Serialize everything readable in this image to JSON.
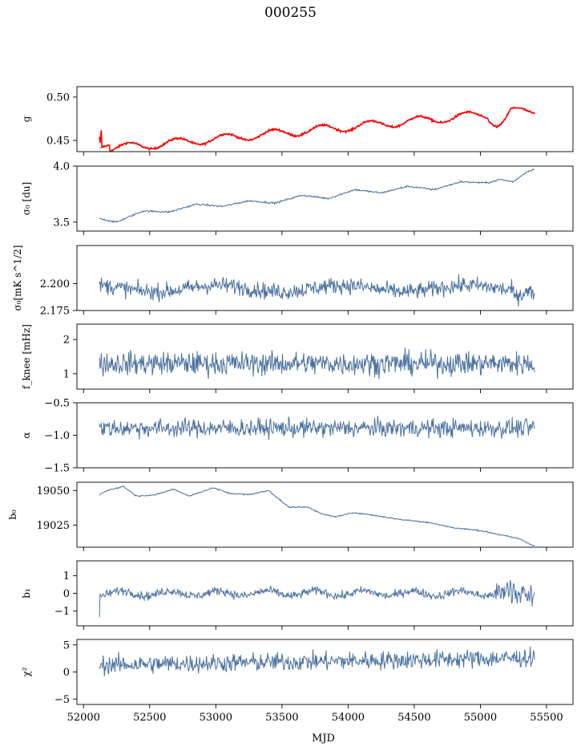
{
  "figure": {
    "title": "000255"
  },
  "chart_data": {
    "type": "line",
    "xlabel": "MJD",
    "xlim": [
      51950,
      55700
    ],
    "xticks": [
      52000,
      52500,
      53000,
      53500,
      54000,
      54500,
      55000,
      55500
    ],
    "panels": [
      {
        "ylabel": "g",
        "ylim": [
          0.437,
          0.512
        ],
        "yticks": [
          0.45,
          0.5
        ],
        "tick_labels": [
          "0.45",
          "0.50"
        ],
        "series": [
          {
            "color": "#4c72a0"
          },
          {
            "color": "#ff0000",
            "overlay": true
          }
        ]
      },
      {
        "ylabel": "σ₀ [du]",
        "ylim": [
          3.42,
          4.0
        ],
        "yticks": [
          3.5,
          4.0
        ],
        "tick_labels": [
          "3.5",
          "4.0"
        ],
        "series": [
          {
            "color": "#4c72a0"
          }
        ]
      },
      {
        "ylabel": "σ₀[mK s^1/2]",
        "ylim": [
          2.175,
          2.2355
        ],
        "yticks": [
          2.175,
          2.2
        ],
        "tick_labels": [
          "2.175",
          "2.200"
        ],
        "series": [
          {
            "color": "#4c72a0"
          }
        ]
      },
      {
        "ylabel": "f_knee [mHz]",
        "ylim": [
          0.55,
          2.45
        ],
        "yticks": [
          1,
          2
        ],
        "tick_labels": [
          "1",
          "2"
        ],
        "series": [
          {
            "color": "#4c72a0"
          }
        ]
      },
      {
        "ylabel": "α",
        "ylim": [
          -1.5,
          -0.5
        ],
        "yticks": [
          -1.5,
          -1.0,
          -0.5
        ],
        "tick_labels": [
          "−1.5",
          "−1.0",
          "−0.5"
        ],
        "series": [
          {
            "color": "#4c72a0"
          }
        ]
      },
      {
        "ylabel": "b₀",
        "ylim": [
          19009,
          19056
        ],
        "yticks": [
          19025,
          19050
        ],
        "tick_labels": [
          "19025",
          "19050"
        ],
        "series": [
          {
            "color": "#4c72a0"
          }
        ]
      },
      {
        "ylabel": "b₁",
        "ylim": [
          -1.85,
          1.85
        ],
        "yticks": [
          -1,
          0,
          1
        ],
        "tick_labels": [
          "−1",
          "0",
          "1"
        ],
        "series": [
          {
            "color": "#4c72a0"
          }
        ]
      },
      {
        "ylabel": "χ²",
        "ylim": [
          -6,
          6
        ],
        "yticks": [
          -5,
          0,
          5
        ],
        "tick_labels": [
          "−5",
          "0",
          "5"
        ],
        "series": [
          {
            "color": "#4c72a0"
          }
        ]
      }
    ],
    "trend_points": {
      "b0": [
        [
          52120,
          19047
        ],
        [
          52180,
          19050
        ],
        [
          52300,
          19053
        ],
        [
          52400,
          19046
        ],
        [
          52550,
          19047
        ],
        [
          52680,
          19051
        ],
        [
          52800,
          19046
        ],
        [
          52980,
          19052
        ],
        [
          53100,
          19048
        ],
        [
          53250,
          19047
        ],
        [
          53400,
          19050
        ],
        [
          53550,
          19038
        ],
        [
          53700,
          19038
        ],
        [
          53800,
          19033
        ],
        [
          53900,
          19031
        ],
        [
          54050,
          19034
        ],
        [
          54200,
          19032
        ],
        [
          54400,
          19029
        ],
        [
          54600,
          19027
        ],
        [
          54800,
          19023
        ],
        [
          55000,
          19021
        ],
        [
          55150,
          19018
        ],
        [
          55300,
          19015
        ],
        [
          55400,
          19010
        ]
      ],
      "sigma0_du": [
        [
          52120,
          3.53
        ],
        [
          52250,
          3.5
        ],
        [
          52450,
          3.6
        ],
        [
          52650,
          3.59
        ],
        [
          52850,
          3.66
        ],
        [
          53050,
          3.64
        ],
        [
          53250,
          3.69
        ],
        [
          53450,
          3.67
        ],
        [
          53650,
          3.74
        ],
        [
          53850,
          3.71
        ],
        [
          54050,
          3.79
        ],
        [
          54250,
          3.76
        ],
        [
          54450,
          3.82
        ],
        [
          54650,
          3.79
        ],
        [
          54850,
          3.86
        ],
        [
          55050,
          3.85
        ],
        [
          55150,
          3.88
        ],
        [
          55250,
          3.86
        ],
        [
          55350,
          3.95
        ],
        [
          55400,
          3.97
        ]
      ]
    }
  }
}
